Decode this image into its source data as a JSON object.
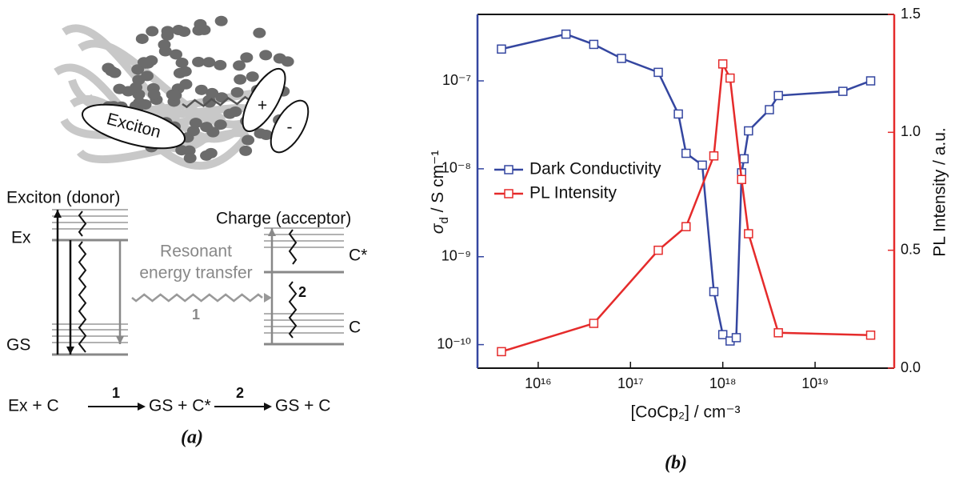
{
  "diagram": {
    "exciton": "Exciton",
    "plus": "+",
    "minus": "-",
    "donor_title": "Exciton (donor)",
    "acceptor_title": "Charge (acceptor)",
    "ex_level": "Ex",
    "gs_level": "GS",
    "cstar_level": "C*",
    "c_level": "C",
    "transfer_line1": "Resonant",
    "transfer_line2": "energy transfer",
    "step1": "1",
    "step2": "2",
    "equation": {
      "left": "Ex + C",
      "arrow1": "1",
      "middle": "GS + C*",
      "arrow2": "2",
      "right": "GS + C"
    },
    "caption": "(a)"
  },
  "chart_data": {
    "type": "line",
    "xscale": "log",
    "yscale": "log",
    "xlim": [
      2200000000000000.0,
      7.2e+19
    ],
    "ylim": [
      5.4e-11,
      5.7e-07
    ],
    "y2lim": [
      0,
      1.5
    ],
    "xticks": [
      {
        "value": 1e+16,
        "label": "10¹⁶"
      },
      {
        "value": 1e+17,
        "label": "10¹⁷"
      },
      {
        "value": 1e+18,
        "label": "10¹⁸"
      },
      {
        "value": 1e+19,
        "label": "10¹⁹"
      }
    ],
    "yticks": [
      {
        "value": 1e-10,
        "label": "10⁻¹⁰"
      },
      {
        "value": 1e-09,
        "label": "10⁻⁹"
      },
      {
        "value": 1e-08,
        "label": "10⁻⁸"
      },
      {
        "value": 1e-07,
        "label": "10⁻⁷"
      }
    ],
    "y2ticks": [
      {
        "value": 0,
        "label": "0.0"
      },
      0.5,
      {
        "value": 1,
        "label": "1.0"
      },
      1.5
    ],
    "x_label": "[CoCp₂] / cm⁻³",
    "y_label": {
      "symbol": "σ",
      "subscript": "d",
      "unit": " / S cm⁻¹"
    },
    "y2_label": "PL Intensity / a.u.",
    "legend": "left",
    "series": [
      {
        "name": "Dark Conductivity",
        "color": "#3446a0",
        "x": [
          4000000000000000.0,
          2e+16,
          4e+16,
          8e+16,
          2e+17,
          3.3e+17,
          4e+17,
          6e+17,
          8e+17,
          1e+18,
          1.2e+18,
          1.4e+18,
          1.6e+18,
          1.7e+18,
          1.9e+18,
          3.2e+18,
          4e+18,
          2e+19,
          4e+19
        ],
        "values": [
          2.3e-07,
          3.4e-07,
          2.6e-07,
          1.8e-07,
          1.25e-07,
          4.2e-08,
          1.5e-08,
          1.1e-08,
          4e-10,
          1.3e-10,
          1.1e-10,
          1.2e-10,
          9e-09,
          1.3e-08,
          2.7e-08,
          4.7e-08,
          6.8e-08,
          7.6e-08,
          1e-07
        ]
      },
      {
        "name": "PL Intensity",
        "color": "#e52b2b",
        "axis": "y2",
        "x": [
          4000000000000000.0,
          4e+16,
          2e+17,
          4e+17,
          8e+17,
          1e+18,
          1.2e+18,
          1.6e+18,
          1.9e+18,
          4e+18,
          4e+19
        ],
        "values": [
          0.07,
          0.19,
          0.5,
          0.6,
          0.9,
          1.29,
          1.23,
          0.8,
          0.57,
          0.15,
          0.14
        ]
      }
    ],
    "caption": "(b)"
  }
}
